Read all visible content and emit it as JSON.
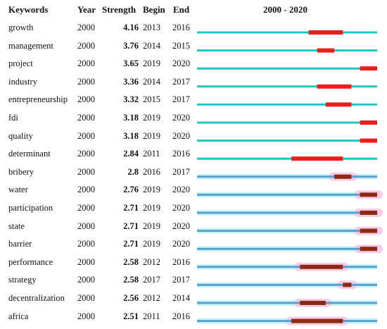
{
  "chart_data": {
    "type": "table",
    "columns": [
      "Keywords",
      "Year",
      "Strength",
      "Begin",
      "End",
      "2000 - 2020"
    ],
    "timeline": {
      "start": 2000,
      "end": 2020
    },
    "colors": {
      "line_top": "#1fc4c4",
      "line_bottom": "#5aa0cf",
      "burst_top": "#ee1c1c",
      "burst_bottom": "#8b2a10",
      "halo_cyan": "#c9f4f8",
      "halo_pink": "#f7cbe6"
    },
    "rows": [
      {
        "keyword": "growth",
        "year": "2000",
        "strength": "4.16",
        "begin": "2013",
        "end": "2016"
      },
      {
        "keyword": "management",
        "year": "2000",
        "strength": "3.76",
        "begin": "2014",
        "end": "2015"
      },
      {
        "keyword": "project",
        "year": "2000",
        "strength": "3.65",
        "begin": "2019",
        "end": "2020"
      },
      {
        "keyword": "industry",
        "year": "2000",
        "strength": "3.36",
        "begin": "2014",
        "end": "2017"
      },
      {
        "keyword": "entrepreneurship",
        "year": "2000",
        "strength": "3.32",
        "begin": "2015",
        "end": "2017"
      },
      {
        "keyword": "fdi",
        "year": "2000",
        "strength": "3.18",
        "begin": "2019",
        "end": "2020"
      },
      {
        "keyword": "quality",
        "year": "2000",
        "strength": "3.18",
        "begin": "2019",
        "end": "2020"
      },
      {
        "keyword": "determinant",
        "year": "2000",
        "strength": "2.84",
        "begin": "2011",
        "end": "2016"
      },
      {
        "keyword": "bribery",
        "year": "2000",
        "strength": "2.8",
        "begin": "2016",
        "end": "2017"
      },
      {
        "keyword": "water",
        "year": "2000",
        "strength": "2.76",
        "begin": "2019",
        "end": "2020"
      },
      {
        "keyword": "participation",
        "year": "2000",
        "strength": "2.71",
        "begin": "2019",
        "end": "2020"
      },
      {
        "keyword": "state",
        "year": "2000",
        "strength": "2.71",
        "begin": "2019",
        "end": "2020"
      },
      {
        "keyword": "barrier",
        "year": "2000",
        "strength": "2.71",
        "begin": "2019",
        "end": "2020"
      },
      {
        "keyword": "performance",
        "year": "2000",
        "strength": "2.58",
        "begin": "2012",
        "end": "2016"
      },
      {
        "keyword": "strategy",
        "year": "2000",
        "strength": "2.58",
        "begin": "2017",
        "end": "2017"
      },
      {
        "keyword": "decentralization",
        "year": "2000",
        "strength": "2.56",
        "begin": "2012",
        "end": "2014"
      },
      {
        "keyword": "africa",
        "year": "2000",
        "strength": "2.51",
        "begin": "2011",
        "end": "2016"
      }
    ]
  }
}
